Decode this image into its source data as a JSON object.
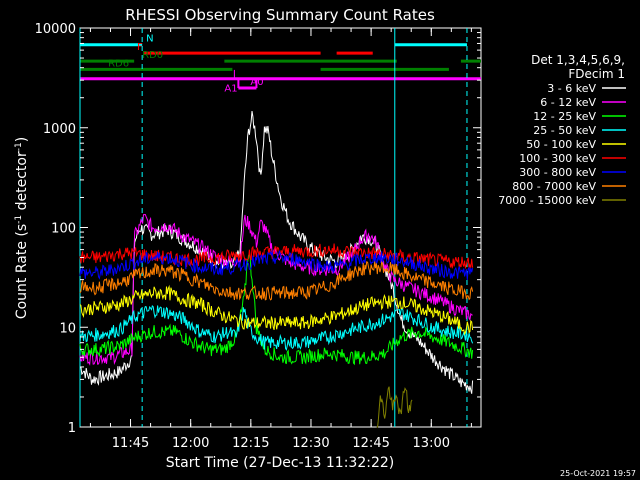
{
  "chart_data": {
    "type": "line",
    "title": "RHESSI Observing Summary Count Rates",
    "xlabel": "Start Time (27-Dec-13 11:32:22)",
    "ylabel": "Count Rate (s-1 detector-1)",
    "ylabel_base": "Count Rate (s",
    "ylabel_sup1": "-1",
    "ylabel_mid": " detector",
    "ylabel_sup2": "-1",
    "ylabel_end": ")",
    "yscale": "log",
    "ylim": [
      1,
      10000
    ],
    "xlim_minutes": [
      0,
      100
    ],
    "x_ticks": [
      {
        "label": "11:45",
        "min": 12.6
      },
      {
        "label": "12:00",
        "min": 27.6
      },
      {
        "label": "12:15",
        "min": 42.6
      },
      {
        "label": "12:30",
        "min": 57.6
      },
      {
        "label": "12:45",
        "min": 72.6
      },
      {
        "label": "13:00",
        "min": 87.6
      }
    ],
    "y_ticks": [
      {
        "label": "1",
        "v": 1
      },
      {
        "label": "10",
        "v": 10
      },
      {
        "label": "100",
        "v": 100
      },
      {
        "label": "1000",
        "v": 1000
      },
      {
        "label": "10000",
        "v": 10000
      }
    ],
    "legend_header": [
      "Det 1,3,4,5,6,9,",
      "FDecim 1"
    ],
    "legend_placement": "right",
    "series": [
      {
        "name": "3 - 6 keV",
        "color": "#ffffff",
        "points": [
          [
            0,
            4
          ],
          [
            3,
            3
          ],
          [
            6,
            3.2
          ],
          [
            10,
            3.6
          ],
          [
            13,
            5
          ],
          [
            13.5,
            70
          ],
          [
            15,
            100
          ],
          [
            18,
            85
          ],
          [
            22,
            95
          ],
          [
            26,
            75
          ],
          [
            30,
            60
          ],
          [
            34,
            45
          ],
          [
            38,
            40
          ],
          [
            40,
            60
          ],
          [
            41,
            300
          ],
          [
            42,
            900
          ],
          [
            43,
            1300
          ],
          [
            44,
            800
          ],
          [
            45,
            300
          ],
          [
            46,
            1000
          ],
          [
            47,
            900
          ],
          [
            48,
            500
          ],
          [
            50,
            200
          ],
          [
            52,
            120
          ],
          [
            55,
            80
          ],
          [
            58,
            60
          ],
          [
            61,
            50
          ],
          [
            64,
            45
          ],
          [
            68,
            60
          ],
          [
            70,
            80
          ],
          [
            72,
            80
          ],
          [
            74,
            65
          ],
          [
            76,
            40
          ],
          [
            78,
            25
          ],
          [
            80,
            12
          ],
          [
            82,
            9
          ],
          [
            85,
            7
          ],
          [
            88,
            5
          ],
          [
            92,
            3.5
          ],
          [
            95,
            2.8
          ],
          [
            98,
            2.5
          ]
        ]
      },
      {
        "name": "6 - 12 keV",
        "color": "#ff00ff",
        "points": [
          [
            0,
            5
          ],
          [
            8,
            5
          ],
          [
            13,
            6
          ],
          [
            13.5,
            80
          ],
          [
            16,
            125
          ],
          [
            18,
            100
          ],
          [
            22,
            105
          ],
          [
            26,
            80
          ],
          [
            30,
            65
          ],
          [
            34,
            50
          ],
          [
            38,
            45
          ],
          [
            40,
            50
          ],
          [
            41,
            120
          ],
          [
            42,
            110
          ],
          [
            43,
            90
          ],
          [
            44,
            70
          ],
          [
            45,
            110
          ],
          [
            46,
            100
          ],
          [
            48,
            60
          ],
          [
            52,
            45
          ],
          [
            56,
            40
          ],
          [
            60,
            38
          ],
          [
            64,
            38
          ],
          [
            68,
            55
          ],
          [
            70,
            75
          ],
          [
            72,
            85
          ],
          [
            74,
            70
          ],
          [
            76,
            40
          ],
          [
            78,
            30
          ],
          [
            82,
            25
          ],
          [
            88,
            20
          ],
          [
            94,
            15
          ],
          [
            98,
            13
          ]
        ]
      },
      {
        "name": "12 - 25 keV",
        "color": "#00ff00",
        "points": [
          [
            0,
            6
          ],
          [
            5,
            6
          ],
          [
            10,
            6.5
          ],
          [
            14,
            8
          ],
          [
            18,
            9
          ],
          [
            24,
            9
          ],
          [
            28,
            7
          ],
          [
            32,
            6
          ],
          [
            36,
            6
          ],
          [
            39,
            8
          ],
          [
            41,
            20
          ],
          [
            42,
            60
          ],
          [
            43,
            30
          ],
          [
            44,
            10
          ],
          [
            46,
            6
          ],
          [
            50,
            5
          ],
          [
            56,
            5
          ],
          [
            62,
            5.5
          ],
          [
            68,
            5
          ],
          [
            72,
            5
          ],
          [
            76,
            5.5
          ],
          [
            80,
            8
          ],
          [
            84,
            9
          ],
          [
            88,
            8
          ],
          [
            92,
            7
          ],
          [
            96,
            6
          ],
          [
            98,
            5.5
          ]
        ]
      },
      {
        "name": "25 - 50 keV",
        "color": "#00ffff",
        "points": [
          [
            0,
            8
          ],
          [
            5,
            8.5
          ],
          [
            10,
            9.5
          ],
          [
            14,
            13
          ],
          [
            18,
            15
          ],
          [
            22,
            14
          ],
          [
            26,
            12
          ],
          [
            30,
            9
          ],
          [
            34,
            8
          ],
          [
            37,
            9
          ],
          [
            39,
            8
          ],
          [
            40,
            12
          ],
          [
            41,
            15
          ],
          [
            42,
            10
          ],
          [
            44,
            8
          ],
          [
            46,
            7
          ],
          [
            50,
            7
          ],
          [
            56,
            7
          ],
          [
            62,
            8
          ],
          [
            66,
            9
          ],
          [
            70,
            10
          ],
          [
            76,
            12
          ],
          [
            80,
            14
          ],
          [
            84,
            12
          ],
          [
            88,
            10
          ],
          [
            92,
            9
          ],
          [
            96,
            8.5
          ],
          [
            98,
            8
          ]
        ]
      },
      {
        "name": "50 - 100 keV",
        "color": "#ffff00",
        "points": [
          [
            0,
            15
          ],
          [
            6,
            16
          ],
          [
            10,
            17
          ],
          [
            14,
            20
          ],
          [
            18,
            22
          ],
          [
            22,
            22
          ],
          [
            26,
            19
          ],
          [
            30,
            17
          ],
          [
            34,
            14
          ],
          [
            38,
            12
          ],
          [
            42,
            11
          ],
          [
            46,
            11
          ],
          [
            50,
            11
          ],
          [
            56,
            11
          ],
          [
            60,
            12
          ],
          [
            64,
            13
          ],
          [
            68,
            15
          ],
          [
            72,
            17
          ],
          [
            76,
            18
          ],
          [
            80,
            18
          ],
          [
            84,
            16
          ],
          [
            88,
            14
          ],
          [
            92,
            12
          ],
          [
            96,
            10
          ],
          [
            98,
            10
          ]
        ]
      },
      {
        "name": "100 - 300 keV",
        "color": "#ff0000",
        "points": [
          [
            0,
            50
          ],
          [
            5,
            50
          ],
          [
            10,
            55
          ],
          [
            14,
            55
          ],
          [
            18,
            52
          ],
          [
            22,
            50
          ],
          [
            26,
            48
          ],
          [
            30,
            48
          ],
          [
            34,
            50
          ],
          [
            38,
            52
          ],
          [
            42,
            55
          ],
          [
            46,
            56
          ],
          [
            50,
            57
          ],
          [
            54,
            58
          ],
          [
            58,
            58
          ],
          [
            62,
            60
          ],
          [
            66,
            58
          ],
          [
            70,
            56
          ],
          [
            74,
            55
          ],
          [
            78,
            52
          ],
          [
            82,
            50
          ],
          [
            86,
            48
          ],
          [
            90,
            46
          ],
          [
            94,
            45
          ],
          [
            98,
            45
          ]
        ]
      },
      {
        "name": "300 - 800 keV",
        "color": "#0000ff",
        "points": [
          [
            0,
            35
          ],
          [
            5,
            35
          ],
          [
            10,
            40
          ],
          [
            14,
            45
          ],
          [
            18,
            50
          ],
          [
            22,
            50
          ],
          [
            26,
            45
          ],
          [
            30,
            40
          ],
          [
            34,
            38
          ],
          [
            38,
            40
          ],
          [
            42,
            44
          ],
          [
            46,
            48
          ],
          [
            50,
            50
          ],
          [
            54,
            48
          ],
          [
            58,
            44
          ],
          [
            62,
            40
          ],
          [
            66,
            42
          ],
          [
            70,
            48
          ],
          [
            74,
            50
          ],
          [
            78,
            48
          ],
          [
            82,
            45
          ],
          [
            86,
            40
          ],
          [
            90,
            37
          ],
          [
            94,
            35
          ],
          [
            98,
            35
          ]
        ]
      },
      {
        "name": "800 - 7000 keV",
        "color": "#ff8000",
        "points": [
          [
            0,
            25
          ],
          [
            5,
            25
          ],
          [
            10,
            28
          ],
          [
            14,
            33
          ],
          [
            18,
            37
          ],
          [
            22,
            37
          ],
          [
            26,
            33
          ],
          [
            30,
            28
          ],
          [
            34,
            24
          ],
          [
            38,
            22
          ],
          [
            42,
            22
          ],
          [
            46,
            22
          ],
          [
            50,
            22
          ],
          [
            54,
            22
          ],
          [
            58,
            23
          ],
          [
            62,
            26
          ],
          [
            66,
            32
          ],
          [
            70,
            38
          ],
          [
            74,
            40
          ],
          [
            78,
            38
          ],
          [
            82,
            33
          ],
          [
            86,
            29
          ],
          [
            90,
            26
          ],
          [
            94,
            23
          ],
          [
            98,
            22
          ]
        ]
      },
      {
        "name": "7000 - 15000 keV",
        "color": "#808000",
        "points": [
          [
            74,
            1
          ],
          [
            75,
            2
          ],
          [
            76,
            1.3
          ],
          [
            77,
            2.5
          ],
          [
            78,
            1.5
          ],
          [
            79,
            2
          ],
          [
            80,
            1.2
          ],
          [
            81,
            2.8
          ],
          [
            82,
            1.4
          ],
          [
            83,
            2
          ]
        ]
      }
    ],
    "vlines": [
      {
        "min": 0,
        "color": "#00ffff",
        "style": "solid"
      },
      {
        "min": 15.5,
        "color": "#00ffff",
        "style": "dash"
      },
      {
        "min": 78.5,
        "color": "#00ffff",
        "style": "solid"
      },
      {
        "min": 96.5,
        "color": "#00ffff",
        "style": "dash"
      }
    ],
    "flag_bars": [
      {
        "label": "N",
        "color": "#00ffff",
        "v": 6800,
        "segs": [
          [
            0,
            15.5
          ],
          [
            78.5,
            96.5
          ]
        ],
        "label_min": 16.5
      },
      {
        "label": "F",
        "color": "#ff0000",
        "v": 5600,
        "segs": [
          [
            16,
            60
          ],
          [
            64,
            73
          ]
        ],
        "label_min": 14.2
      },
      {
        "label": "RD0",
        "color": "#008000",
        "v": 4650,
        "segs": [
          [
            0,
            13.5
          ],
          [
            36,
            79
          ],
          [
            95,
            100
          ]
        ],
        "label_min": 15.5
      },
      {
        "label": "RD6",
        "color": "#008000",
        "v": 3850,
        "segs": [
          [
            0,
            38
          ],
          [
            60,
            92
          ]
        ],
        "label_min": 7
      },
      {
        "label": "",
        "color": "#ff00ff",
        "v": 3100,
        "segs": [
          [
            0,
            100
          ]
        ],
        "label_min": 0
      },
      {
        "label": "A0",
        "color": "#ff00ff",
        "v": 2500,
        "segs": [
          [
            39.5,
            44
          ]
        ],
        "label_min": 42.5
      },
      {
        "label": "A1",
        "color": "#ff00ff",
        "v": 2150,
        "segs": [],
        "label_min": 36
      }
    ],
    "footer_date": "25-Oct-2021 19:57"
  }
}
